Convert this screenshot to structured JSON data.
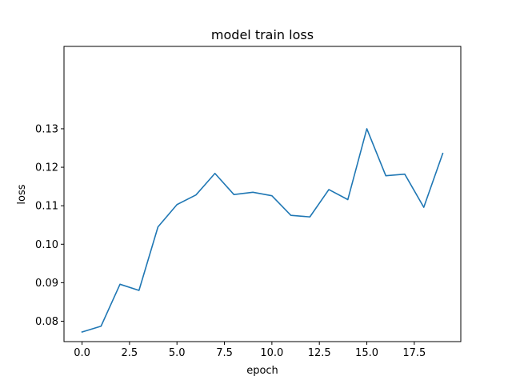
{
  "chart_data": {
    "type": "line",
    "title": "model train loss",
    "xlabel": "epoch",
    "ylabel": "loss",
    "xlim": [
      -0.95,
      19.95
    ],
    "ylim": [
      0.0747,
      0.1514
    ],
    "xticks": [
      0.0,
      2.5,
      5.0,
      7.5,
      10.0,
      12.5,
      15.0,
      17.5
    ],
    "xtick_labels": [
      "0.0",
      "2.5",
      "5.0",
      "7.5",
      "10.0",
      "12.5",
      "15.0",
      "17.5"
    ],
    "yticks": [
      0.08,
      0.09,
      0.1,
      0.11,
      0.12,
      0.13
    ],
    "ytick_labels": [
      "0.08",
      "0.09",
      "0.10",
      "0.11",
      "0.12",
      "0.13"
    ],
    "grid": false,
    "series": [
      {
        "color": "#1f77b4",
        "x": [
          0,
          1,
          2,
          3,
          4,
          5,
          6,
          7,
          8,
          9,
          10,
          11,
          12,
          13,
          14,
          15,
          16,
          17,
          18,
          19
        ],
        "values": [
          0.0772,
          0.0787,
          0.0896,
          0.088,
          0.1045,
          0.1103,
          0.1128,
          0.1184,
          0.1129,
          0.1135,
          0.1126,
          0.1075,
          0.1071,
          0.1142,
          0.1116,
          0.13,
          0.1178,
          0.1182,
          0.1096,
          0.1236
        ]
      }
    ]
  }
}
